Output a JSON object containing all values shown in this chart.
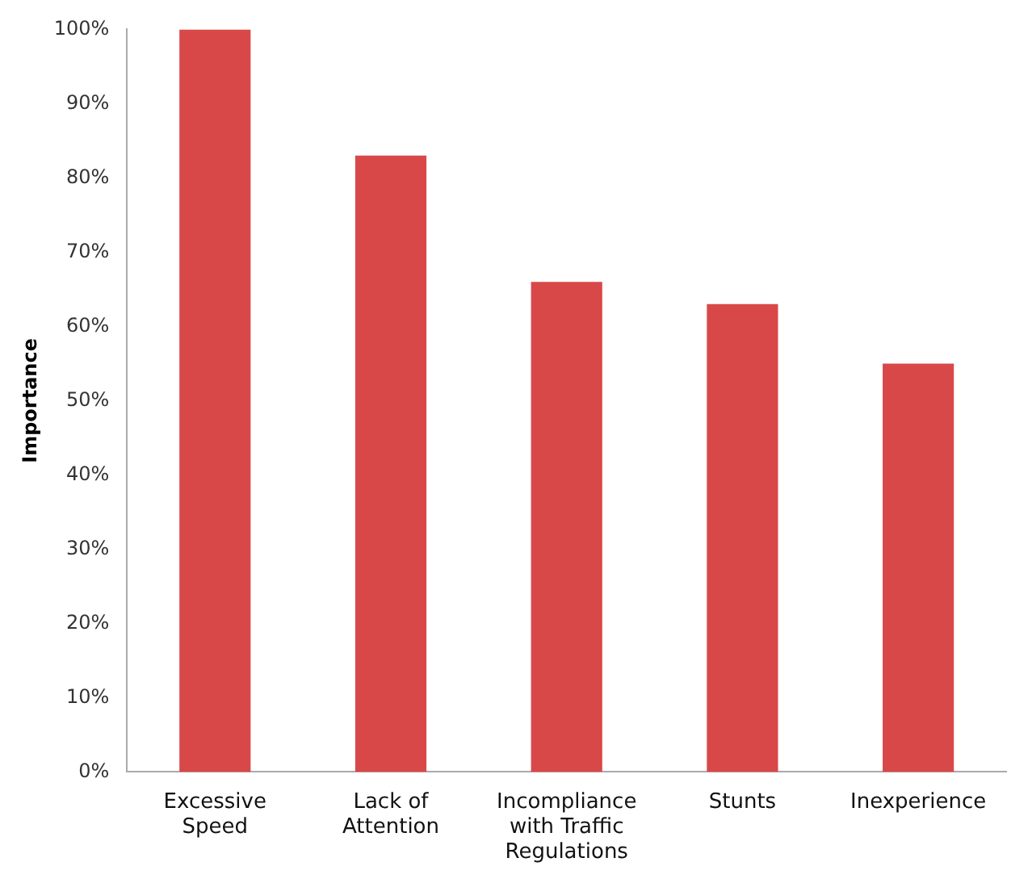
{
  "chart_data": {
    "type": "bar",
    "ylabel": "Importance",
    "categories": [
      "Excessive Speed",
      "Lack of Attention",
      "Incompliance with Traffic Regulations",
      "Stunts",
      "Inexperience"
    ],
    "values": [
      100,
      83,
      66,
      63,
      55
    ],
    "color": "#d94848",
    "ylim": [
      0,
      100
    ],
    "yticks": [
      {
        "value": 0,
        "label": "0%"
      },
      {
        "value": 10,
        "label": "10%"
      },
      {
        "value": 20,
        "label": "20%"
      },
      {
        "value": 30,
        "label": "30%"
      },
      {
        "value": 40,
        "label": "40%"
      },
      {
        "value": 50,
        "label": "50%"
      },
      {
        "value": 60,
        "label": "60%"
      },
      {
        "value": 70,
        "label": "70%"
      },
      {
        "value": 80,
        "label": "80%"
      },
      {
        "value": 90,
        "label": "90%"
      },
      {
        "value": 100,
        "label": "100%"
      }
    ],
    "grid": false,
    "legend": false
  }
}
